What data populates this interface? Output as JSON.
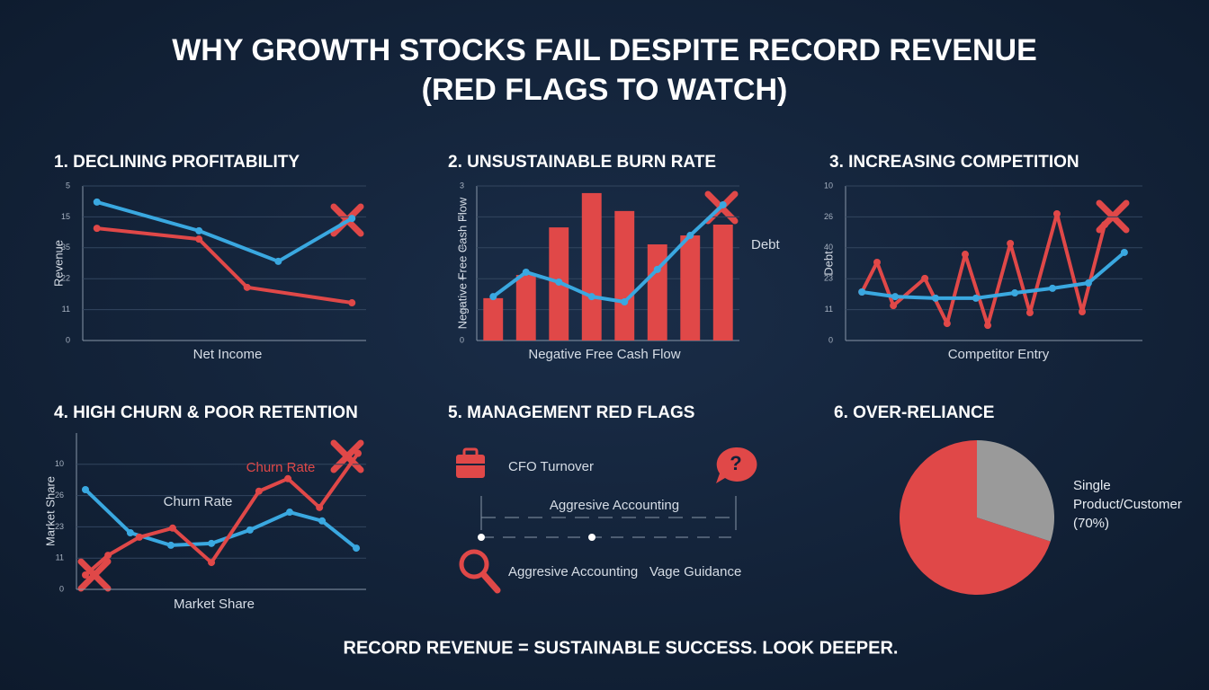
{
  "title": "WHY GROWTH STOCKS FAIL DESPITE RECORD REVENUE",
  "subtitle": "(RED FLAGS TO WATCH)",
  "footer": "RECORD REVENUE = SUSTAINABLE SUCCESS. LOOK DEEPER.",
  "management": {
    "title": "5. MANAGEMENT RED FLAGS",
    "items": [
      "CFO Turnover",
      "Aggresive Accounting",
      "Aggresive Accounting",
      "Vage Guidance"
    ]
  },
  "chart_data": [
    {
      "type": "line",
      "title": "1. DECLINING PROFITABILITY",
      "ylabel": "Revenue",
      "xlabel": "Net Income",
      "xlim": [
        0,
        10
      ],
      "ylim": [
        0,
        50
      ],
      "yticks": [
        0,
        {
          "value": 10,
          "label": "11"
        },
        {
          "value": 20,
          "label": "22"
        },
        {
          "value": 30,
          "label": "35"
        },
        {
          "value": 40,
          "label": "15"
        },
        {
          "value": 50,
          "label": "5"
        }
      ],
      "grid": true,
      "series": [
        {
          "color": "#3aa8e0",
          "x": [
            0.5,
            4.1,
            6.9,
            9.5
          ],
          "values": [
            44.8,
            35.5,
            25.6,
            39.5
          ]
        },
        {
          "color": "#e04848",
          "x": [
            0.5,
            4.1,
            5.8,
            9.5
          ],
          "values": [
            36.3,
            32.8,
            17.2,
            12.2
          ]
        }
      ]
    },
    {
      "type": "bar",
      "title": "2. UNSUSTAINABLE BURN RATE",
      "ylabel": "Negative Free Cash Flow",
      "xlabel": "Negative Free Cash Flow",
      "annotations": [
        "Debt"
      ],
      "categories": [
        null,
        null,
        null,
        null,
        null,
        null,
        null,
        null
      ],
      "ylim": [
        0,
        50
      ],
      "yticks": [
        0,
        {
          "value": 10,
          "label": "2"
        },
        {
          "value": 20,
          "label": "4"
        },
        {
          "value": 30,
          "label": "4"
        },
        {
          "value": 40,
          "label": "5"
        },
        {
          "value": 50,
          "label": "3"
        }
      ],
      "grid": true,
      "series": [
        {
          "type": "bar",
          "color": "#e04848",
          "values": [
            13.7,
            21.2,
            36.6,
            47.7,
            41.9,
            31.1,
            34.0,
            37.5
          ]
        },
        {
          "type": "line",
          "color": "#3aa8e0",
          "values": [
            14.2,
            22.1,
            18.9,
            14.2,
            12.5,
            23.0,
            34.0,
            43.9
          ]
        }
      ]
    },
    {
      "type": "line",
      "title": "3. INCREASING COMPETITION",
      "ylabel": "Debt",
      "xlabel": "Competitor Entry",
      "xlim": [
        0,
        10
      ],
      "ylim": [
        0,
        50
      ],
      "yticks": [
        0,
        {
          "value": 10,
          "label": "11"
        },
        {
          "value": 20,
          "label": "23"
        },
        {
          "value": 30,
          "label": "40"
        },
        {
          "value": 40,
          "label": "26"
        },
        {
          "value": 50,
          "label": "10"
        }
      ],
      "grid": true,
      "series": [
        {
          "color": "#e04848",
          "x": [
            0.55,
            1.06,
            1.61,
            2.67,
            3.42,
            4.03,
            4.79,
            5.55,
            6.21,
            7.12,
            7.97,
            8.73
          ],
          "values": [
            15.7,
            25.3,
            11.3,
            20.1,
            5.5,
            27.9,
            4.9,
            31.4,
            9.0,
            41.0,
            9.3,
            37.5
          ]
        },
        {
          "color": "#3aa8e0",
          "x": [
            0.55,
            1.67,
            3.03,
            4.39,
            5.7,
            6.97,
            8.18,
            9.39
          ],
          "values": [
            15.7,
            14.2,
            13.7,
            13.7,
            15.4,
            16.9,
            18.6,
            28.5
          ]
        }
      ]
    },
    {
      "type": "line",
      "title": "4. HIGH CHURN & POOR RETENTION",
      "ylabel": "Market Share",
      "xlabel": "Market Share",
      "annotations": [
        "Churn Rate",
        "Churn Rate"
      ],
      "xlim": [
        0,
        10
      ],
      "ylim": [
        0,
        50
      ],
      "yticks": [
        0,
        {
          "value": 10,
          "label": "11"
        },
        {
          "value": 20,
          "label": "23"
        },
        {
          "value": 30,
          "label": "26"
        },
        {
          "value": 40,
          "label": "10"
        }
      ],
      "grid": true,
      "series": [
        {
          "color": "#3aa8e0",
          "x": [
            0.31,
            1.86,
            3.26,
            4.66,
            5.99,
            7.36,
            8.48,
            9.66
          ],
          "values": [
            31.9,
            18.1,
            14.1,
            14.7,
            19.0,
            24.7,
            21.9,
            13.2
          ]
        },
        {
          "color": "#e04848",
          "x": [
            0.31,
            1.09,
            2.17,
            3.32,
            4.66,
            6.3,
            7.3,
            8.39,
            9.72
          ],
          "values": [
            4.6,
            10.9,
            16.7,
            19.6,
            8.6,
            31.4,
            35.4,
            26.2,
            43.5
          ]
        }
      ]
    },
    {
      "type": "pie",
      "title": "6. OVER-RELIANCE",
      "direction": "counterclockwise",
      "categories": [
        "Single Product/Customer",
        null
      ],
      "values": [
        70,
        30
      ],
      "value_labels": [
        "(70%)",
        null
      ],
      "colors": [
        "#e04848",
        "#9a9a9a"
      ]
    }
  ]
}
